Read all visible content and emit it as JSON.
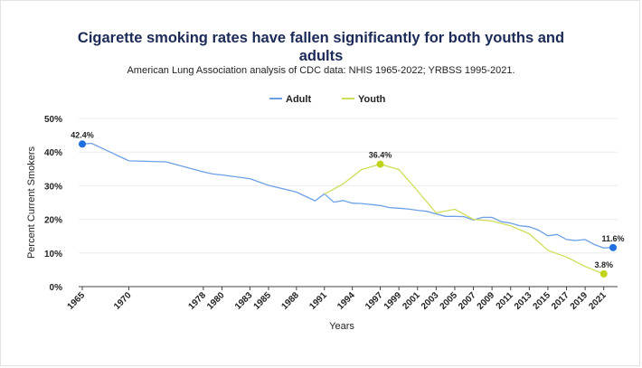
{
  "chart_data": {
    "type": "line",
    "title": "Cigarette smoking rates have fallen significantly for both youths and adults",
    "subtitle": "American Lung Association analysis of CDC data: NHIS 1965-2022; YRBSS 1995-2021.",
    "xlabel": "Years",
    "ylabel": "Percent Current Smokers",
    "ylim": [
      0,
      50
    ],
    "yticks": [
      "0%",
      "10%",
      "20%",
      "30%",
      "40%",
      "50%"
    ],
    "xticks": [
      "1965",
      "1970",
      "1978",
      "1980",
      "1983",
      "1985",
      "1988",
      "1991",
      "1994",
      "1997",
      "1999",
      "2001",
      "2003",
      "2005",
      "2007",
      "2009",
      "2011",
      "2013",
      "2015",
      "2017",
      "2019",
      "2021"
    ],
    "categories": [
      "1965",
      "1966",
      "1970",
      "1974",
      "1978",
      "1979",
      "1980",
      "1983",
      "1985",
      "1987",
      "1988",
      "1990",
      "1991",
      "1992",
      "1993",
      "1994",
      "1995",
      "1997",
      "1998",
      "1999",
      "2000",
      "2001",
      "2002",
      "2003",
      "2004",
      "2005",
      "2006",
      "2007",
      "2008",
      "2009",
      "2010",
      "2011",
      "2012",
      "2013",
      "2014",
      "2015",
      "2016",
      "2017",
      "2018",
      "2019",
      "2020",
      "2021",
      "2022"
    ],
    "legend_position": "top-center",
    "grid": true,
    "series": [
      {
        "name": "Adult",
        "color": "#6ca0e6",
        "marker_color": "#1f6fe0",
        "values": [
          42.4,
          42.6,
          37.4,
          37.1,
          34.1,
          33.5,
          33.2,
          32.1,
          30.1,
          28.8,
          28.1,
          25.5,
          27.6,
          25.1,
          25.6,
          24.8,
          24.7,
          24.1,
          23.5,
          23.3,
          23.1,
          22.7,
          22.4,
          21.6,
          20.9,
          20.9,
          20.8,
          19.8,
          20.6,
          20.6,
          19.3,
          18.9,
          18.1,
          17.8,
          16.8,
          15.1,
          15.5,
          14.0,
          13.7,
          14.0,
          12.5,
          11.5,
          11.6
        ]
      },
      {
        "name": "Youth",
        "color": "#d1dd5a",
        "marker_color": "#c2d41a",
        "values": [
          null,
          null,
          null,
          null,
          null,
          null,
          null,
          null,
          null,
          null,
          null,
          null,
          27.5,
          null,
          30.5,
          null,
          34.8,
          36.4,
          null,
          34.8,
          null,
          28.5,
          null,
          21.9,
          null,
          23.0,
          null,
          20.0,
          null,
          19.5,
          null,
          18.1,
          null,
          15.7,
          null,
          10.8,
          null,
          8.8,
          null,
          6.0,
          null,
          3.8,
          null
        ]
      }
    ],
    "annotations": [
      {
        "series": "Adult",
        "x": "1965",
        "label": "42.4%"
      },
      {
        "series": "Youth",
        "x": "1997",
        "label": "36.4%"
      },
      {
        "series": "Adult",
        "x": "2022",
        "label": "11.6%"
      },
      {
        "series": "Youth",
        "x": "2021",
        "label": "3.8%"
      }
    ]
  }
}
